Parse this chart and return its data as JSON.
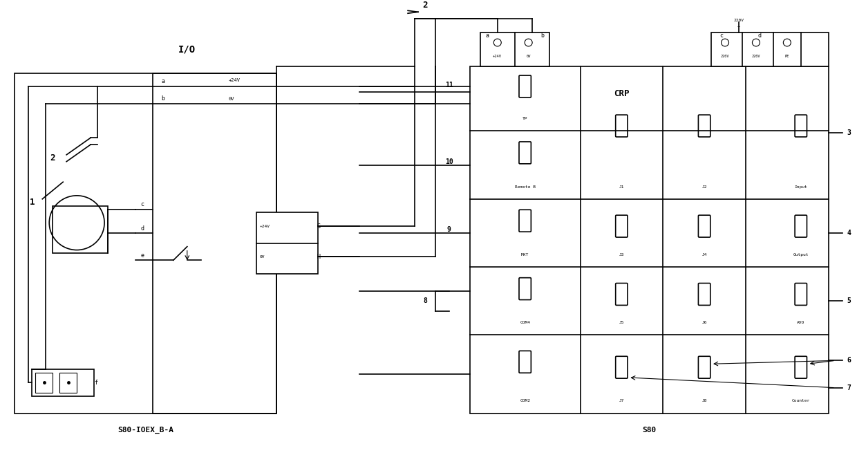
{
  "bg_color": "#ffffff",
  "line_color": "#000000",
  "fig_width": 12.4,
  "fig_height": 6.58,
  "title": "S80-IOEX_B-A",
  "s80_label": "S80",
  "io_label": "I/O",
  "crp_label": "CRP"
}
